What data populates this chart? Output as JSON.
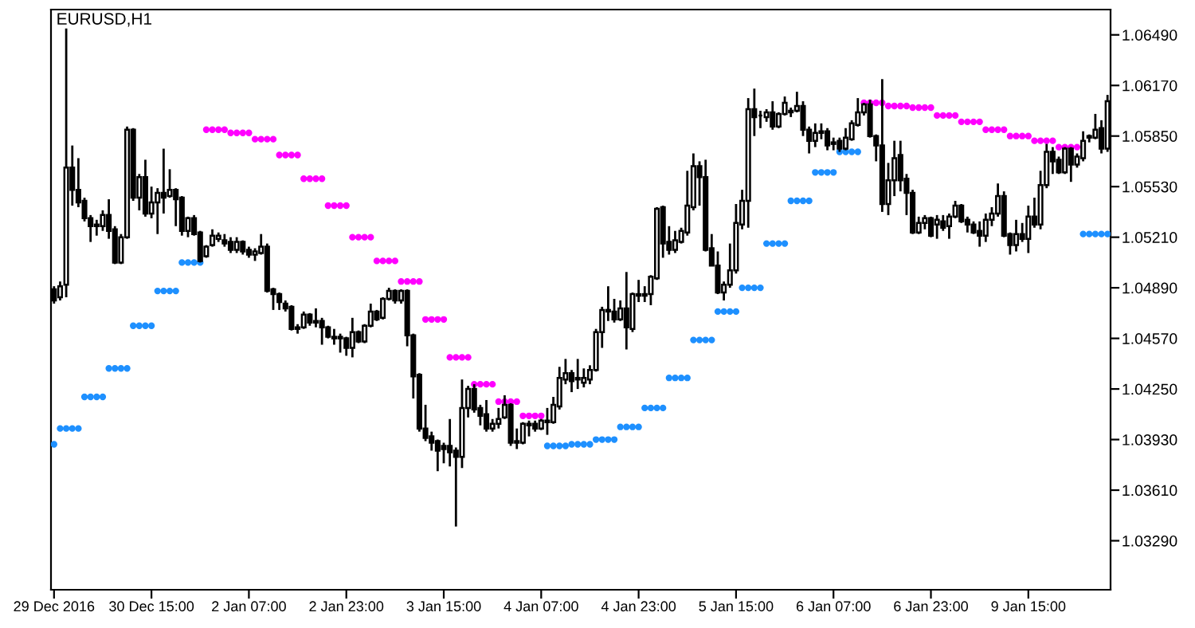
{
  "chart_data": {
    "type": "candlestick",
    "title": "EURUSD,H1",
    "categories": [
      "29 Dec 2016",
      null,
      null,
      null,
      null,
      null,
      null,
      null,
      null,
      null,
      null,
      null,
      null,
      null,
      null,
      null,
      "30 Dec 15:00",
      null,
      null,
      null,
      null,
      null,
      null,
      null,
      null,
      null,
      null,
      null,
      null,
      null,
      null,
      null,
      "2 Jan 07:00",
      null,
      null,
      null,
      null,
      null,
      null,
      null,
      null,
      null,
      null,
      null,
      null,
      null,
      null,
      null,
      "2 Jan 23:00",
      null,
      null,
      null,
      null,
      null,
      null,
      null,
      null,
      null,
      null,
      null,
      null,
      null,
      null,
      null,
      "3 Jan 15:00",
      null,
      null,
      null,
      null,
      null,
      null,
      null,
      null,
      null,
      null,
      null,
      null,
      null,
      null,
      null,
      "4 Jan 07:00",
      null,
      null,
      null,
      null,
      null,
      null,
      null,
      null,
      null,
      null,
      null,
      null,
      null,
      null,
      null,
      "4 Jan 23:00",
      null,
      null,
      null,
      null,
      null,
      null,
      null,
      null,
      null,
      null,
      null,
      null,
      null,
      null,
      null,
      "5 Jan 15:00",
      null,
      null,
      null,
      null,
      null,
      null,
      null,
      null,
      null,
      null,
      null,
      null,
      null,
      null,
      null,
      "6 Jan 07:00",
      null,
      null,
      null,
      null,
      null,
      null,
      null,
      null,
      null,
      null,
      null,
      null,
      null,
      null,
      null,
      "6 Jan 23:00",
      null,
      null,
      null,
      null,
      null,
      null,
      null,
      null,
      null,
      null,
      null,
      null,
      null,
      null,
      null,
      "9 Jan 15:00",
      null,
      null,
      null,
      null,
      null,
      null,
      null,
      null,
      null,
      null,
      null,
      null,
      null
    ],
    "ohlc": [
      [
        1.0488,
        1.049,
        1.0479,
        1.0481
      ],
      [
        1.0483,
        1.0493,
        1.0481,
        1.049
      ],
      [
        1.0491,
        1.0653,
        1.0483,
        1.0565
      ],
      [
        1.0565,
        1.0579,
        1.0541,
        1.0551
      ],
      [
        1.0551,
        1.0571,
        1.054,
        1.0543
      ],
      [
        1.0544,
        1.0546,
        1.0531,
        1.0533
      ],
      [
        1.0533,
        1.0535,
        1.0518,
        1.0528
      ],
      [
        1.0529,
        1.0532,
        1.0522,
        1.0528
      ],
      [
        1.0528,
        1.0538,
        1.0525,
        1.0535
      ],
      [
        1.0535,
        1.0545,
        1.052,
        1.0525
      ],
      [
        1.0526,
        1.0528,
        1.0504,
        1.0505
      ],
      [
        1.0505,
        1.0523,
        1.0504,
        1.0521
      ],
      [
        1.0521,
        1.0591,
        1.052,
        1.0589
      ],
      [
        1.0589,
        1.059,
        1.0544,
        1.0546
      ],
      [
        1.0546,
        1.0561,
        1.0538,
        1.0559
      ],
      [
        1.0559,
        1.057,
        1.0534,
        1.0536
      ],
      [
        1.0536,
        1.0553,
        1.0533,
        1.0543
      ],
      [
        1.0543,
        1.0552,
        1.0523,
        1.0549
      ],
      [
        1.0549,
        1.0577,
        1.0536,
        1.0546
      ],
      [
        1.0547,
        1.0564,
        1.0546,
        1.0551
      ],
      [
        1.0551,
        1.0552,
        1.0528,
        1.0545
      ],
      [
        1.0546,
        1.0547,
        1.0522,
        1.0525
      ],
      [
        1.0525,
        1.0534,
        1.0521,
        1.0533
      ],
      [
        1.0533,
        1.0535,
        1.0522,
        1.0523
      ],
      [
        1.0524,
        1.0525,
        1.0505,
        1.0506
      ],
      [
        1.0509,
        1.0516,
        1.0508,
        1.0515
      ],
      [
        1.0516,
        1.0526,
        1.0515,
        1.0522
      ],
      [
        1.052,
        1.0524,
        1.0518,
        1.0522
      ],
      [
        1.0519,
        1.0523,
        1.0515,
        1.0517
      ],
      [
        1.0518,
        1.0521,
        1.0511,
        1.0513
      ],
      [
        1.0513,
        1.0521,
        1.0511,
        1.0518
      ],
      [
        1.0518,
        1.0519,
        1.051,
        1.0512
      ],
      [
        1.0513,
        1.0515,
        1.0508,
        1.051
      ],
      [
        1.051,
        1.0514,
        1.0506,
        1.0512
      ],
      [
        1.0511,
        1.0523,
        1.051,
        1.0515
      ],
      [
        1.0515,
        1.0517,
        1.0486,
        1.0487
      ],
      [
        1.0488,
        1.0489,
        1.0475,
        1.0485
      ],
      [
        1.0485,
        1.0486,
        1.0475,
        1.048
      ],
      [
        1.0479,
        1.0481,
        1.0474,
        1.0476
      ],
      [
        1.0477,
        1.0478,
        1.0462,
        1.0463
      ],
      [
        1.0464,
        1.0466,
        1.046,
        1.0463
      ],
      [
        1.0464,
        1.0474,
        1.0463,
        1.0472
      ],
      [
        1.0472,
        1.0473,
        1.0465,
        1.0467
      ],
      [
        1.0468,
        1.0476,
        1.0464,
        1.0467
      ],
      [
        1.0468,
        1.047,
        1.0453,
        1.0464
      ],
      [
        1.0464,
        1.0465,
        1.0457,
        1.0458
      ],
      [
        1.0458,
        1.0463,
        1.0453,
        1.0457
      ],
      [
        1.0457,
        1.046,
        1.0448,
        1.0458
      ],
      [
        1.0457,
        1.0458,
        1.0446,
        1.0451
      ],
      [
        1.0451,
        1.047,
        1.0445,
        1.0461
      ],
      [
        1.0461,
        1.0462,
        1.0454,
        1.0455
      ],
      [
        1.0455,
        1.0466,
        1.0454,
        1.0465
      ],
      [
        1.0465,
        1.0479,
        1.0464,
        1.0474
      ],
      [
        1.0474,
        1.0475,
        1.0468,
        1.0469
      ],
      [
        1.047,
        1.0483,
        1.0469,
        1.0482
      ],
      [
        1.0482,
        1.0489,
        1.0481,
        1.0487
      ],
      [
        1.0487,
        1.0488,
        1.0479,
        1.0481
      ],
      [
        1.0481,
        1.0488,
        1.0479,
        1.0487
      ],
      [
        1.0487,
        1.0488,
        1.0452,
        1.0459
      ],
      [
        1.0459,
        1.046,
        1.0419,
        1.0433
      ],
      [
        1.0434,
        1.0435,
        1.0398,
        1.04
      ],
      [
        1.04,
        1.0415,
        1.0392,
        1.0394
      ],
      [
        1.0395,
        1.0398,
        1.0386,
        1.0391
      ],
      [
        1.0392,
        1.0393,
        1.0373,
        1.0386
      ],
      [
        1.0389,
        1.0391,
        1.0378,
        1.0387
      ],
      [
        1.0389,
        1.0406,
        1.0376,
        1.0385
      ],
      [
        1.0386,
        1.0388,
        1.0338,
        1.0382
      ],
      [
        1.0382,
        1.0431,
        1.0375,
        1.0413
      ],
      [
        1.0413,
        1.0427,
        1.0407,
        1.0425
      ],
      [
        1.0425,
        1.0428,
        1.041,
        1.0412
      ],
      [
        1.0413,
        1.0415,
        1.0402,
        1.0408
      ],
      [
        1.0409,
        1.0418,
        1.0398,
        1.04
      ],
      [
        1.04,
        1.0406,
        1.0398,
        1.0403
      ],
      [
        1.0403,
        1.0413,
        1.04,
        1.0406
      ],
      [
        1.0407,
        1.0421,
        1.0406,
        1.0415
      ],
      [
        1.0415,
        1.0416,
        1.0389,
        1.0391
      ],
      [
        1.0391,
        1.04,
        1.0387,
        1.0392
      ],
      [
        1.0391,
        1.0404,
        1.039,
        1.0403
      ],
      [
        1.0403,
        1.0405,
        1.0395,
        1.0402
      ],
      [
        1.0403,
        1.0405,
        1.0398,
        1.04
      ],
      [
        1.04,
        1.0406,
        1.0399,
        1.0405
      ],
      [
        1.0405,
        1.0413,
        1.0396,
        1.0404
      ],
      [
        1.0404,
        1.042,
        1.0403,
        1.0415
      ],
      [
        1.0414,
        1.0439,
        1.0412,
        1.0432
      ],
      [
        1.0431,
        1.0444,
        1.0428,
        1.0435
      ],
      [
        1.0435,
        1.0437,
        1.0423,
        1.043
      ],
      [
        1.0432,
        1.0444,
        1.0425,
        1.0431
      ],
      [
        1.0429,
        1.0438,
        1.0426,
        1.0432
      ],
      [
        1.0431,
        1.044,
        1.0428,
        1.0437
      ],
      [
        1.0437,
        1.0463,
        1.0436,
        1.0461
      ],
      [
        1.0461,
        1.0477,
        1.0451,
        1.0475
      ],
      [
        1.0474,
        1.049,
        1.0468,
        1.0475
      ],
      [
        1.0474,
        1.0482,
        1.0467,
        1.0469
      ],
      [
        1.0469,
        1.0481,
        1.0468,
        1.0476
      ],
      [
        1.0476,
        1.0499,
        1.045,
        1.0464
      ],
      [
        1.0463,
        1.0486,
        1.0461,
        1.0485
      ],
      [
        1.0485,
        1.0494,
        1.048,
        1.0484
      ],
      [
        1.0484,
        1.049,
        1.048,
        1.0485
      ],
      [
        1.0485,
        1.0497,
        1.0478,
        1.0496
      ],
      [
        1.0495,
        1.054,
        1.0494,
        1.0539
      ],
      [
        1.054,
        1.0541,
        1.0508,
        1.0517
      ],
      [
        1.0518,
        1.0528,
        1.051,
        1.0513
      ],
      [
        1.0513,
        1.0525,
        1.0511,
        1.0519
      ],
      [
        1.0518,
        1.0527,
        1.0517,
        1.0525
      ],
      [
        1.0524,
        1.0563,
        1.0522,
        1.0541
      ],
      [
        1.054,
        1.0574,
        1.0538,
        1.0566
      ],
      [
        1.0566,
        1.0569,
        1.0541,
        1.0559
      ],
      [
        1.0559,
        1.057,
        1.0512,
        1.0513
      ],
      [
        1.0514,
        1.0523,
        1.0503,
        1.0503
      ],
      [
        1.0503,
        1.0512,
        1.0485,
        1.0486
      ],
      [
        1.0486,
        1.0493,
        1.0481,
        1.0491
      ],
      [
        1.0491,
        1.0517,
        1.0489,
        1.05
      ],
      [
        1.05,
        1.0542,
        1.0498,
        1.053
      ],
      [
        1.0529,
        1.0551,
        1.0526,
        1.0544
      ],
      [
        1.0544,
        1.0609,
        1.0527,
        1.0602
      ],
      [
        1.0602,
        1.0615,
        1.0585,
        1.0597
      ],
      [
        1.0598,
        1.0601,
        1.059,
        1.0598
      ],
      [
        1.0597,
        1.0602,
        1.0594,
        1.06
      ],
      [
        1.06,
        1.0607,
        1.0589,
        1.0591
      ],
      [
        1.0591,
        1.06,
        1.059,
        1.0599
      ],
      [
        1.0599,
        1.061,
        1.0598,
        1.0606
      ],
      [
        1.0601,
        1.0603,
        1.0597,
        1.06
      ],
      [
        1.0601,
        1.0613,
        1.06,
        1.0604
      ],
      [
        1.0604,
        1.0607,
        1.0585,
        1.0589
      ],
      [
        1.0589,
        1.0591,
        1.0574,
        1.0582
      ],
      [
        1.0582,
        1.0593,
        1.0578,
        1.0587
      ],
      [
        1.0587,
        1.0593,
        1.0583,
        1.0588
      ],
      [
        1.0588,
        1.059,
        1.0576,
        1.0579
      ],
      [
        1.058,
        1.0584,
        1.0576,
        1.0581
      ],
      [
        1.0582,
        1.0584,
        1.0575,
        1.0577
      ],
      [
        1.0577,
        1.059,
        1.0576,
        1.0584
      ],
      [
        1.0583,
        1.0595,
        1.0582,
        1.0593
      ],
      [
        1.0592,
        1.0609,
        1.0591,
        1.06
      ],
      [
        1.06,
        1.0606,
        1.0598,
        1.0605
      ],
      [
        1.0605,
        1.0608,
        1.0584,
        1.0585
      ],
      [
        1.0585,
        1.0586,
        1.0569,
        1.0579
      ],
      [
        1.0579,
        1.0621,
        1.0537,
        1.0542
      ],
      [
        1.0542,
        1.0568,
        1.0535,
        1.0557
      ],
      [
        1.0557,
        1.0582,
        1.0547,
        1.0571
      ],
      [
        1.0573,
        1.0582,
        1.055,
        1.0557
      ],
      [
        1.0558,
        1.0561,
        1.0535,
        1.0549
      ],
      [
        1.0549,
        1.0551,
        1.0523,
        1.0524
      ],
      [
        1.0524,
        1.0534,
        1.0523,
        1.053
      ],
      [
        1.053,
        1.0535,
        1.0526,
        1.0533
      ],
      [
        1.0533,
        1.0534,
        1.0521,
        1.0522
      ],
      [
        1.0529,
        1.0535,
        1.052,
        1.0532
      ],
      [
        1.0531,
        1.0535,
        1.0525,
        1.0527
      ],
      [
        1.0528,
        1.0536,
        1.052,
        1.0534
      ],
      [
        1.0534,
        1.0544,
        1.0533,
        1.0541
      ],
      [
        1.0541,
        1.0542,
        1.053,
        1.0531
      ],
      [
        1.0532,
        1.0534,
        1.0524,
        1.0529
      ],
      [
        1.0529,
        1.0531,
        1.0523,
        1.0524
      ],
      [
        1.0525,
        1.0531,
        1.0515,
        1.0522
      ],
      [
        1.0522,
        1.0536,
        1.0518,
        1.0532
      ],
      [
        1.0532,
        1.054,
        1.0528,
        1.0536
      ],
      [
        1.0536,
        1.0555,
        1.0534,
        1.0547
      ],
      [
        1.0547,
        1.055,
        1.0521,
        1.0522
      ],
      [
        1.0523,
        1.0524,
        1.051,
        1.0516
      ],
      [
        1.0516,
        1.0532,
        1.0512,
        1.0523
      ],
      [
        1.0523,
        1.053,
        1.0518,
        1.052
      ],
      [
        1.052,
        1.0541,
        1.0511,
        1.0534
      ],
      [
        1.0534,
        1.0546,
        1.0527,
        1.0529
      ],
      [
        1.0529,
        1.0563,
        1.0526,
        1.0554
      ],
      [
        1.0554,
        1.058,
        1.0552,
        1.0575
      ],
      [
        1.0575,
        1.0578,
        1.0561,
        1.0569
      ],
      [
        1.057,
        1.0572,
        1.0561,
        1.0562
      ],
      [
        1.0562,
        1.0578,
        1.0561,
        1.0577
      ],
      [
        1.0577,
        1.0578,
        1.0556,
        1.0567
      ],
      [
        1.0567,
        1.0574,
        1.0565,
        1.0572
      ],
      [
        1.0571,
        1.0588,
        1.0569,
        1.0582
      ],
      [
        1.0584,
        1.0586,
        1.0581,
        1.0585
      ],
      [
        1.0584,
        1.0599,
        1.0583,
        1.0589
      ],
      [
        1.059,
        1.0595,
        1.0574,
        1.0577
      ],
      [
        1.0577,
        1.0611,
        1.0575,
        1.0607
      ]
    ],
    "series": [
      {
        "type": "scatter",
        "color": "#1e90ff",
        "values": [
          1.039,
          1.04,
          1.04,
          1.04,
          1.04,
          1.042,
          1.042,
          1.042,
          1.042,
          1.0438,
          1.0438,
          1.0438,
          1.0438,
          1.0465,
          1.0465,
          1.0465,
          1.0465,
          1.0487,
          1.0487,
          1.0487,
          1.0487,
          1.0505,
          1.0505,
          1.0505,
          1.0505,
          null,
          null,
          null,
          null,
          null,
          null,
          null,
          null,
          null,
          null,
          null,
          null,
          null,
          null,
          null,
          null,
          null,
          null,
          null,
          null,
          null,
          null,
          null,
          null,
          null,
          null,
          null,
          null,
          null,
          null,
          null,
          null,
          null,
          null,
          null,
          null,
          null,
          null,
          null,
          null,
          null,
          null,
          null,
          null,
          null,
          null,
          null,
          null,
          null,
          null,
          null,
          null,
          null,
          null,
          null,
          null,
          1.0389,
          1.0389,
          1.0389,
          1.0389,
          1.039,
          1.039,
          1.039,
          1.039,
          1.0393,
          1.0393,
          1.0393,
          1.0393,
          1.0401,
          1.0401,
          1.0401,
          1.0401,
          1.0413,
          1.0413,
          1.0413,
          1.0413,
          1.0432,
          1.0432,
          1.0432,
          1.0432,
          1.0456,
          1.0456,
          1.0456,
          1.0456,
          1.0474,
          1.0474,
          1.0474,
          1.0474,
          1.0489,
          1.0489,
          1.0489,
          1.0489,
          1.0517,
          1.0517,
          1.0517,
          1.0517,
          1.0544,
          1.0544,
          1.0544,
          1.0544,
          1.0562,
          1.0562,
          1.0562,
          1.0562,
          1.0575,
          1.0575,
          1.0575,
          1.0575,
          null,
          null,
          null,
          null,
          null,
          null,
          null,
          null,
          null,
          null,
          null,
          null,
          null,
          null,
          null,
          null,
          null,
          null,
          null,
          null,
          null,
          null,
          null,
          null,
          null,
          null,
          null,
          null,
          null,
          null,
          null,
          null,
          null,
          null,
          null,
          null,
          1.0523,
          1.0523,
          1.0523,
          1.0523,
          1.0523
        ]
      },
      {
        "type": "scatter",
        "color": "#ff00ff",
        "values": [
          null,
          null,
          null,
          null,
          null,
          null,
          null,
          null,
          null,
          null,
          null,
          null,
          null,
          null,
          null,
          null,
          null,
          null,
          null,
          null,
          null,
          null,
          null,
          null,
          null,
          1.0589,
          1.0589,
          1.0589,
          1.0589,
          1.0587,
          1.0587,
          1.0587,
          1.0587,
          1.0583,
          1.0583,
          1.0583,
          1.0583,
          1.0573,
          1.0573,
          1.0573,
          1.0573,
          1.0558,
          1.0558,
          1.0558,
          1.0558,
          1.0541,
          1.0541,
          1.0541,
          1.0541,
          1.0521,
          1.0521,
          1.0521,
          1.0521,
          1.0506,
          1.0506,
          1.0506,
          1.0506,
          1.0493,
          1.0493,
          1.0493,
          1.0493,
          1.0469,
          1.0469,
          1.0469,
          1.0469,
          1.0445,
          1.0445,
          1.0445,
          1.0445,
          1.0428,
          1.0428,
          1.0428,
          1.0428,
          1.0417,
          1.0417,
          1.0417,
          1.0417,
          1.0408,
          1.0408,
          1.0408,
          1.0408,
          null,
          null,
          null,
          null,
          null,
          null,
          null,
          null,
          null,
          null,
          null,
          null,
          null,
          null,
          null,
          null,
          null,
          null,
          null,
          null,
          null,
          null,
          null,
          null,
          null,
          null,
          null,
          null,
          null,
          null,
          null,
          null,
          null,
          null,
          null,
          null,
          null,
          null,
          null,
          null,
          null,
          null,
          null,
          null,
          null,
          null,
          null,
          null,
          null,
          null,
          null,
          null,
          1.0606,
          1.0606,
          1.0606,
          1.0606,
          1.0604,
          1.0604,
          1.0604,
          1.0604,
          1.0603,
          1.0603,
          1.0603,
          1.0603,
          1.0598,
          1.0598,
          1.0598,
          1.0598,
          1.0594,
          1.0594,
          1.0594,
          1.0594,
          1.0589,
          1.0589,
          1.0589,
          1.0589,
          1.0585,
          1.0585,
          1.0585,
          1.0585,
          1.0582,
          1.0582,
          1.0582,
          1.0582,
          1.0578,
          1.0578,
          1.0578,
          1.0578,
          null,
          null,
          null,
          null,
          null
        ]
      }
    ],
    "ylim": [
      1.0298,
      1.0665
    ],
    "yticks": [
      {
        "value": 1.0649,
        "label": "1.06490"
      },
      {
        "value": 1.0617,
        "label": "1.06170"
      },
      {
        "value": 1.0585,
        "label": "1.05850"
      },
      {
        "value": 1.0553,
        "label": "1.05530"
      },
      {
        "value": 1.0521,
        "label": "1.05210"
      },
      {
        "value": 1.0489,
        "label": "1.04890"
      },
      {
        "value": 1.0457,
        "label": "1.04570"
      },
      {
        "value": 1.0425,
        "label": "1.04250"
      },
      {
        "value": 1.0393,
        "label": "1.03930"
      },
      {
        "value": 1.0361,
        "label": "1.03610"
      },
      {
        "value": 1.0329,
        "label": "1.03290"
      }
    ],
    "grid": false,
    "legend": false
  }
}
